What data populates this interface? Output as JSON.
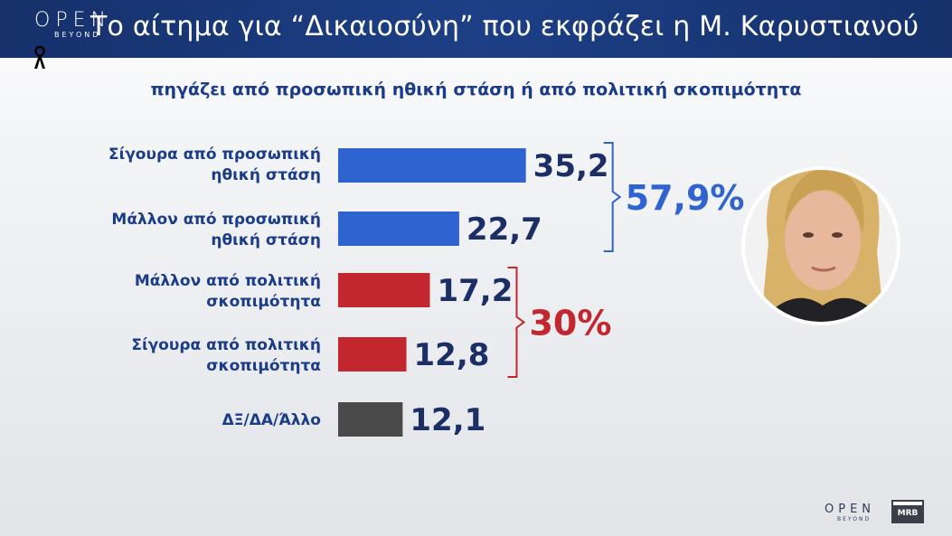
{
  "header": {
    "title": "Το αίτημα για “Δικαιοσύνη” που εκφράζει η Μ. Καρυστιανού",
    "logo_word": "OPEN",
    "logo_sub": "BEYOND"
  },
  "subtitle": "πηγάζει από προσωπική ηθική στάση ή από πολιτική σκοπιμότητα",
  "chart_data": {
    "type": "bar",
    "orientation": "horizontal",
    "categories": [
      [
        "Σίγουρα από προσωπική",
        "ηθική στάση"
      ],
      [
        "Μάλλον από προσωπική",
        "ηθική στάση"
      ],
      [
        "Μάλλον από πολιτική",
        "σκοπιμότητα"
      ],
      [
        "Σίγουρα από πολιτική",
        "σκοπιμότητα"
      ],
      [
        "ΔΞ/ΔΑ/Άλλο"
      ]
    ],
    "values": [
      35.2,
      22.7,
      17.2,
      12.8,
      12.1
    ],
    "value_labels": [
      "35,2",
      "22,7",
      "17,2",
      "12,8",
      "12,1"
    ],
    "bar_colors": [
      "#2f63d0",
      "#2f63d0",
      "#c2262f",
      "#c2262f",
      "#4a4a4a"
    ],
    "groups": [
      {
        "label": "57,9%",
        "members": [
          0,
          1
        ],
        "color": "#2f63d0"
      },
      {
        "label": "30%",
        "members": [
          2,
          3
        ],
        "color": "#c2262f"
      }
    ],
    "grid": false,
    "legend": "none"
  },
  "colors": {
    "header_bg": "#1a3a7c",
    "subtitle": "#1a3a8a",
    "label": "#1b3c87",
    "value": "#1b2f66",
    "blue": "#2f63d0",
    "red": "#c2262f",
    "gray": "#4a4a4a"
  },
  "icons": {
    "ribbon": "mourning-ribbon-icon",
    "avatar": "person-photo"
  },
  "footer": {
    "logo_word": "OPEN",
    "logo_sub": "BEYOND",
    "mrb": "MRB"
  }
}
